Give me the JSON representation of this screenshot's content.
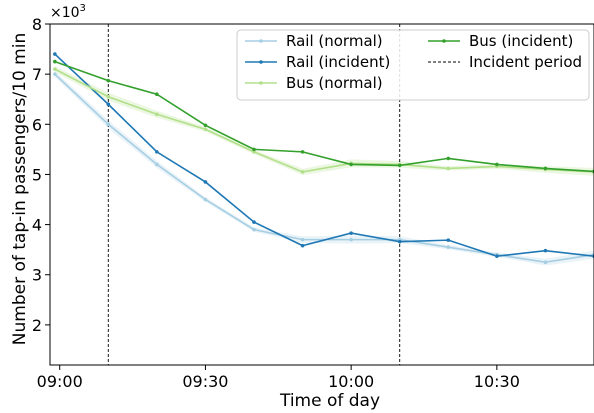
{
  "chart_data": {
    "type": "line",
    "title": "",
    "xlabel": "Time of day",
    "ylabel": "Number of tap-in passengers/10 min",
    "y_multiplier_label": "×10³",
    "x_unit": "minutes after 09:00",
    "xlim": [
      -2,
      110
    ],
    "ylim": [
      1.2,
      8
    ],
    "x_ticks": [
      {
        "value": 0,
        "label": "09:00"
      },
      {
        "value": 30,
        "label": "09:30"
      },
      {
        "value": 60,
        "label": "10:00"
      },
      {
        "value": 90,
        "label": "10:30"
      }
    ],
    "y_ticks": [
      {
        "value": 2,
        "label": "2"
      },
      {
        "value": 3,
        "label": "3"
      },
      {
        "value": 4,
        "label": "4"
      },
      {
        "value": 5,
        "label": "5"
      },
      {
        "value": 6,
        "label": "6"
      },
      {
        "value": 7,
        "label": "7"
      },
      {
        "value": 8,
        "label": "8"
      }
    ],
    "incident_period": {
      "start": 10,
      "end": 70,
      "label": "Incident period"
    },
    "x": [
      -1,
      10,
      20,
      30,
      40,
      50,
      60,
      70,
      80,
      90,
      100,
      110
    ],
    "series": [
      {
        "name": "Rail (normal)",
        "color": "#a6cee3",
        "band": true,
        "values": [
          7.0,
          6.0,
          5.2,
          4.5,
          3.9,
          3.7,
          3.7,
          3.7,
          3.55,
          3.4,
          3.25,
          3.4
        ]
      },
      {
        "name": "Rail (incident)",
        "color": "#1f78b4",
        "band": false,
        "values": [
          7.4,
          6.4,
          5.45,
          4.85,
          4.05,
          3.58,
          3.83,
          3.66,
          3.69,
          3.37,
          3.48,
          3.37
        ]
      },
      {
        "name": "Bus (normal)",
        "color": "#b2df8a",
        "band": true,
        "values": [
          7.1,
          6.55,
          6.2,
          5.9,
          5.45,
          5.05,
          5.22,
          5.2,
          5.12,
          5.16,
          5.1,
          5.05
        ]
      },
      {
        "name": "Bus (incident)",
        "color": "#33a02c",
        "band": false,
        "values": [
          7.25,
          6.87,
          6.6,
          5.98,
          5.5,
          5.45,
          5.2,
          5.18,
          5.32,
          5.2,
          5.12,
          5.06
        ]
      }
    ],
    "legend": {
      "position": "top-right",
      "entries": [
        {
          "label": "Rail (normal)",
          "color": "#a6cee3",
          "style": "solid"
        },
        {
          "label": "Rail (incident)",
          "color": "#1f78b4",
          "style": "solid"
        },
        {
          "label": "Bus (normal)",
          "color": "#b2df8a",
          "style": "solid"
        },
        {
          "label": "Bus (incident)",
          "color": "#33a02c",
          "style": "solid"
        },
        {
          "label": "Incident period",
          "color": "#000000",
          "style": "dashed"
        }
      ]
    },
    "grid": false
  }
}
